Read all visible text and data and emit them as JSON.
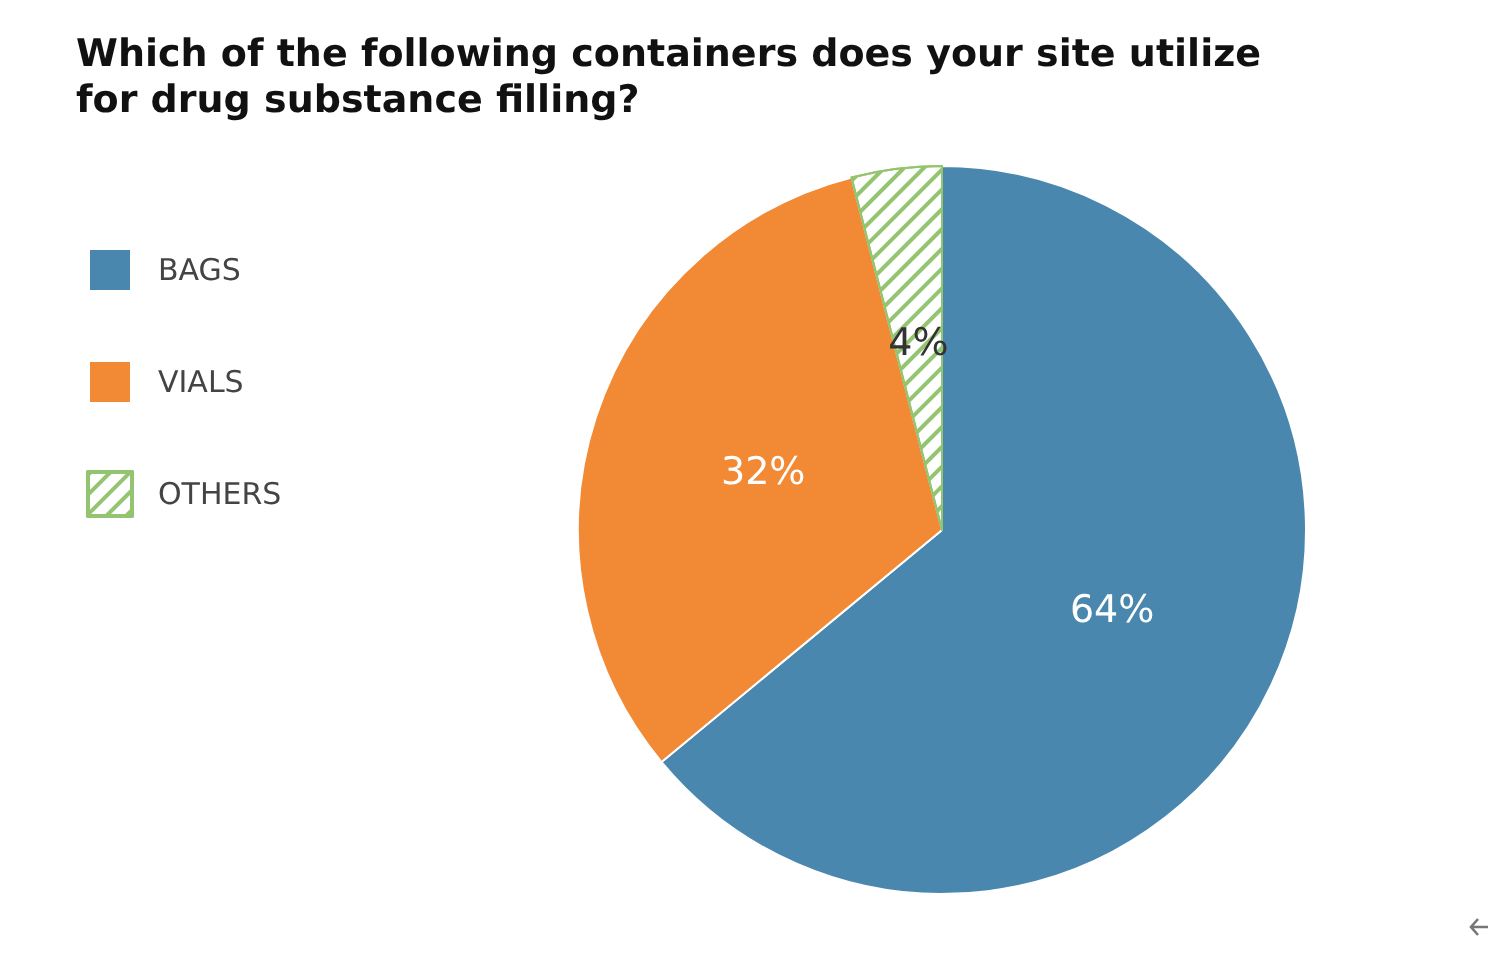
{
  "chart_data": {
    "type": "pie",
    "title": "Which of the following containers does your site utilize for drug substance filling?",
    "categories": [
      "BAGS",
      "VIALS",
      "OTHERS"
    ],
    "values": [
      64,
      32,
      4
    ],
    "colors": [
      "#4a87ae",
      "#f28a35",
      "#93c46f"
    ],
    "value_labels": [
      "64%",
      "32%",
      "4%"
    ],
    "legend": "left"
  }
}
